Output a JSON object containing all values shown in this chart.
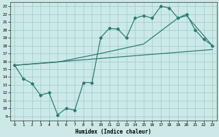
{
  "xlabel": "Humidex (Indice chaleur)",
  "bg_color": "#cce9e7",
  "grid_color": "#9fd0cc",
  "line_color": "#2a7a72",
  "xlim": [
    -0.5,
    23.5
  ],
  "ylim": [
    8.5,
    23.5
  ],
  "xticks": [
    0,
    1,
    2,
    3,
    4,
    5,
    6,
    7,
    8,
    9,
    10,
    11,
    12,
    13,
    14,
    15,
    16,
    17,
    18,
    19,
    20,
    21,
    22,
    23
  ],
  "yticks": [
    9,
    10,
    11,
    12,
    13,
    14,
    15,
    16,
    17,
    18,
    19,
    20,
    21,
    22,
    23
  ],
  "line1_x": [
    0,
    1,
    2,
    3,
    4,
    5,
    6,
    7,
    8,
    9,
    10,
    11,
    12,
    13,
    14,
    15,
    16,
    17,
    18,
    19,
    20,
    21,
    22,
    23
  ],
  "line1_y": [
    15.5,
    13.8,
    13.2,
    11.7,
    12.0,
    9.2,
    10.0,
    9.8,
    13.3,
    13.3,
    19.0,
    20.2,
    20.1,
    19.0,
    21.5,
    21.8,
    21.5,
    23.0,
    22.8,
    21.5,
    22.0,
    20.0,
    18.8,
    18.0
  ],
  "line2_x": [
    0,
    23
  ],
  "line2_y": [
    15.5,
    17.5
  ],
  "line3_x": [
    0,
    5,
    10,
    15,
    19,
    20,
    23
  ],
  "line3_y": [
    15.5,
    15.9,
    17.0,
    18.2,
    21.5,
    21.8,
    18.0
  ]
}
